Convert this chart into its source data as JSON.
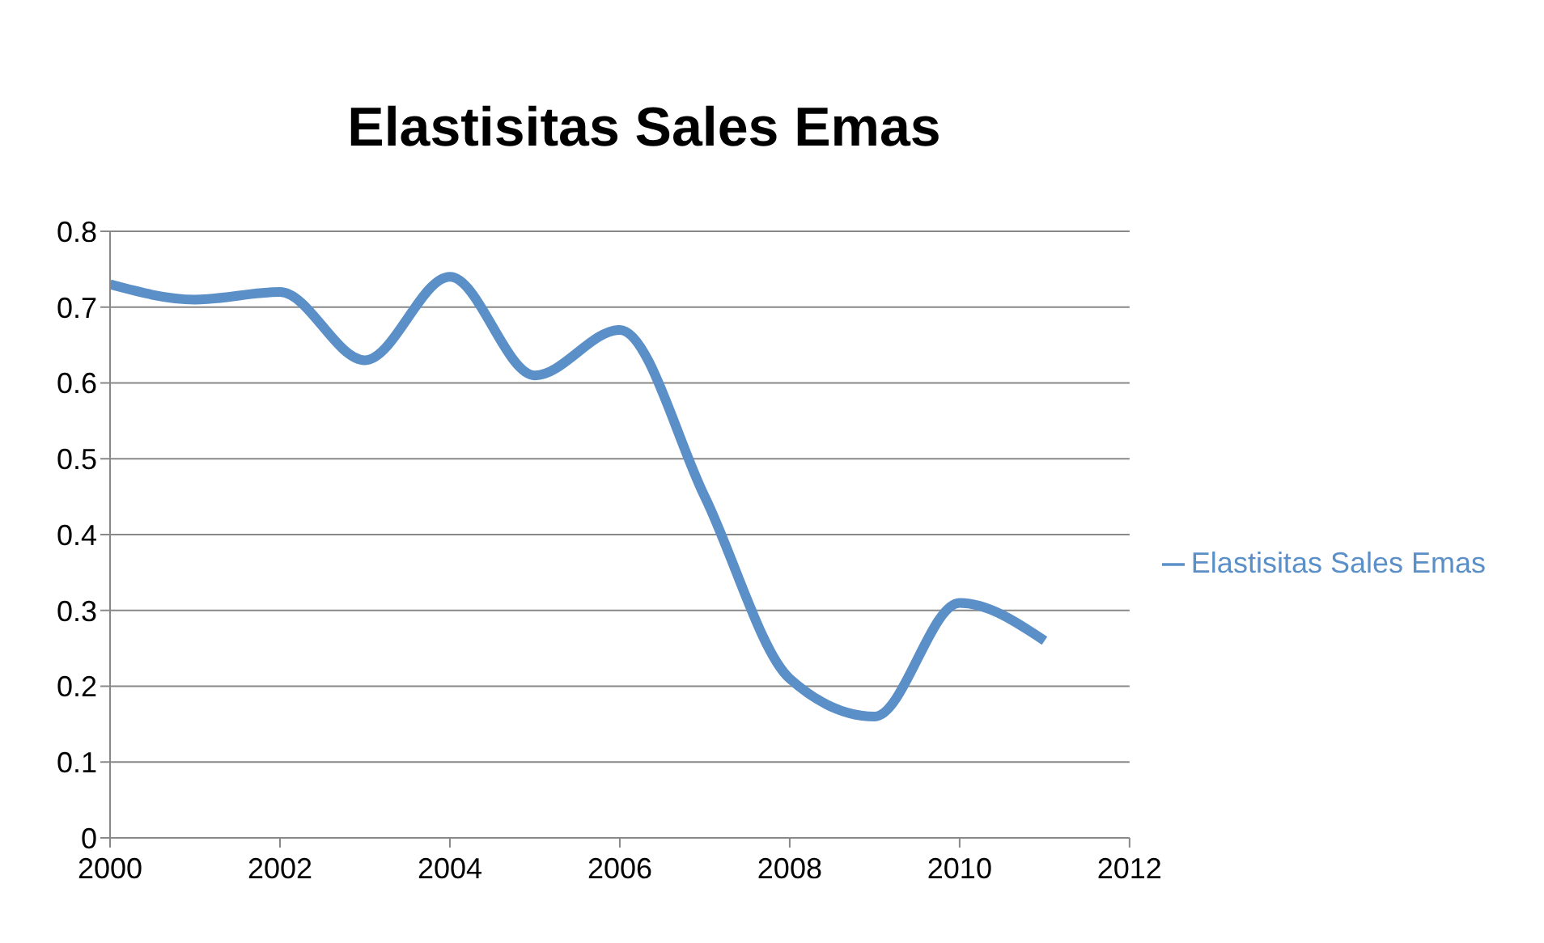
{
  "chart_data": {
    "type": "line",
    "title": "Elastisitas Sales Emas",
    "x": [
      2000,
      2001,
      2002,
      2003,
      2004,
      2005,
      2006,
      2007,
      2008,
      2009,
      2010,
      2011
    ],
    "series": [
      {
        "name": "Elastisitas Sales Emas",
        "color": "#5b8fc7",
        "values": [
          0.73,
          0.71,
          0.72,
          0.63,
          0.74,
          0.61,
          0.67,
          0.45,
          0.21,
          0.16,
          0.31,
          0.26
        ]
      }
    ],
    "xlim": [
      2000,
      2012
    ],
    "xticks": [
      2000,
      2002,
      2004,
      2006,
      2008,
      2010,
      2012
    ],
    "ylim": [
      0,
      0.8
    ],
    "yticks": [
      0,
      0.1,
      0.2,
      0.3,
      0.4,
      0.5,
      0.6,
      0.7,
      0.8
    ],
    "grid": "y",
    "legend": "right",
    "marker": "none",
    "line_style": "solid"
  }
}
